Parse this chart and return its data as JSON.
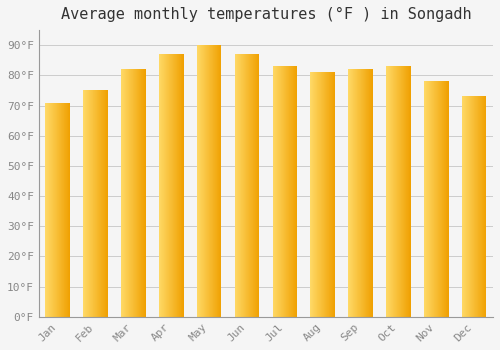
{
  "title": "Average monthly temperatures (°F ) in Songadh",
  "months": [
    "Jan",
    "Feb",
    "Mar",
    "Apr",
    "May",
    "Jun",
    "Jul",
    "Aug",
    "Sep",
    "Oct",
    "Nov",
    "Dec"
  ],
  "values": [
    71,
    75,
    82,
    87,
    90,
    87,
    83,
    81,
    82,
    83,
    78,
    73
  ],
  "bar_color_left": "#FFD966",
  "bar_color_right": "#F0A000",
  "ylim": [
    0,
    95
  ],
  "yticks": [
    0,
    10,
    20,
    30,
    40,
    50,
    60,
    70,
    80,
    90
  ],
  "background_color": "#F5F5F5",
  "plot_bg_color": "#F5F5F5",
  "grid_color": "#CCCCCC",
  "title_fontsize": 11,
  "tick_fontsize": 8,
  "tick_color": "#888888",
  "bar_width": 0.65
}
